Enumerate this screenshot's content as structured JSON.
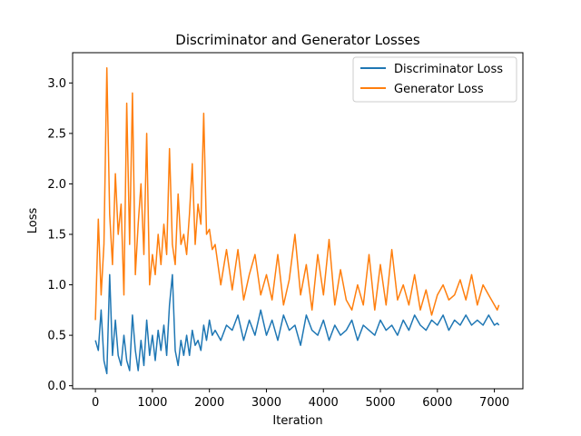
{
  "chart_data": {
    "type": "line",
    "title": "Discriminator and Generator Losses",
    "xlabel": "Iteration",
    "ylabel": "Loss",
    "xlim": [
      -400,
      7500
    ],
    "ylim": [
      -0.03,
      3.3
    ],
    "xticks": [
      0,
      1000,
      2000,
      3000,
      4000,
      5000,
      6000,
      7000
    ],
    "xtick_labels": [
      "0",
      "1000",
      "2000",
      "3000",
      "4000",
      "5000",
      "6000",
      "7000"
    ],
    "yticks": [
      0.0,
      0.5,
      1.0,
      1.5,
      2.0,
      2.5,
      3.0
    ],
    "ytick_labels": [
      "0.0",
      "0.5",
      "1.0",
      "1.5",
      "2.0",
      "2.5",
      "3.0"
    ],
    "legend_position": "top-right",
    "x": [
      0,
      50,
      100,
      150,
      200,
      250,
      300,
      350,
      400,
      450,
      500,
      550,
      600,
      650,
      700,
      750,
      800,
      850,
      900,
      950,
      1000,
      1050,
      1100,
      1150,
      1200,
      1250,
      1300,
      1350,
      1400,
      1450,
      1500,
      1550,
      1600,
      1650,
      1700,
      1750,
      1800,
      1850,
      1900,
      1950,
      2000,
      2050,
      2100,
      2200,
      2300,
      2400,
      2500,
      2600,
      2700,
      2800,
      2900,
      3000,
      3100,
      3200,
      3300,
      3400,
      3500,
      3600,
      3700,
      3800,
      3900,
      4000,
      4100,
      4200,
      4300,
      4400,
      4500,
      4600,
      4700,
      4800,
      4900,
      5000,
      5100,
      5200,
      5300,
      5400,
      5500,
      5600,
      5700,
      5800,
      5900,
      6000,
      6100,
      6200,
      6300,
      6400,
      6500,
      6600,
      6700,
      6800,
      6900,
      7000,
      7050,
      7080
    ],
    "series": [
      {
        "name": "Discriminator Loss",
        "color": "#1f77b4",
        "values": [
          0.45,
          0.35,
          0.75,
          0.25,
          0.12,
          1.1,
          0.3,
          0.65,
          0.3,
          0.2,
          0.5,
          0.25,
          0.15,
          0.7,
          0.35,
          0.15,
          0.45,
          0.2,
          0.65,
          0.3,
          0.5,
          0.25,
          0.55,
          0.35,
          0.6,
          0.3,
          0.8,
          1.1,
          0.35,
          0.2,
          0.45,
          0.3,
          0.5,
          0.3,
          0.55,
          0.4,
          0.45,
          0.35,
          0.6,
          0.45,
          0.65,
          0.5,
          0.55,
          0.45,
          0.6,
          0.55,
          0.7,
          0.45,
          0.65,
          0.5,
          0.75,
          0.5,
          0.65,
          0.45,
          0.7,
          0.55,
          0.6,
          0.4,
          0.7,
          0.55,
          0.5,
          0.65,
          0.45,
          0.6,
          0.5,
          0.55,
          0.65,
          0.45,
          0.6,
          0.55,
          0.5,
          0.65,
          0.55,
          0.6,
          0.5,
          0.65,
          0.55,
          0.7,
          0.6,
          0.55,
          0.65,
          0.6,
          0.7,
          0.55,
          0.65,
          0.6,
          0.7,
          0.6,
          0.65,
          0.6,
          0.7,
          0.6,
          0.62,
          0.6
        ]
      },
      {
        "name": "Generator Loss",
        "color": "#ff7f0e",
        "values": [
          0.65,
          1.65,
          0.9,
          1.4,
          3.15,
          1.7,
          1.2,
          2.1,
          1.5,
          1.8,
          0.9,
          2.8,
          1.4,
          2.9,
          1.1,
          1.6,
          2.0,
          1.3,
          2.5,
          1.0,
          1.3,
          1.1,
          1.5,
          1.2,
          1.6,
          1.3,
          2.35,
          1.4,
          1.2,
          1.9,
          1.4,
          1.5,
          1.3,
          1.7,
          2.2,
          1.4,
          1.8,
          1.6,
          2.7,
          1.5,
          1.55,
          1.35,
          1.4,
          1.0,
          1.35,
          0.95,
          1.35,
          0.85,
          1.1,
          1.3,
          0.9,
          1.1,
          0.85,
          1.3,
          0.8,
          1.05,
          1.5,
          0.9,
          1.2,
          0.75,
          1.3,
          0.9,
          1.45,
          0.8,
          1.15,
          0.85,
          0.75,
          1.0,
          0.8,
          1.3,
          0.75,
          1.2,
          0.8,
          1.35,
          0.85,
          1.0,
          0.8,
          1.1,
          0.75,
          0.95,
          0.7,
          0.9,
          1.0,
          0.85,
          0.9,
          1.05,
          0.85,
          1.1,
          0.8,
          1.0,
          0.9,
          0.8,
          0.75,
          0.8
        ]
      }
    ]
  }
}
